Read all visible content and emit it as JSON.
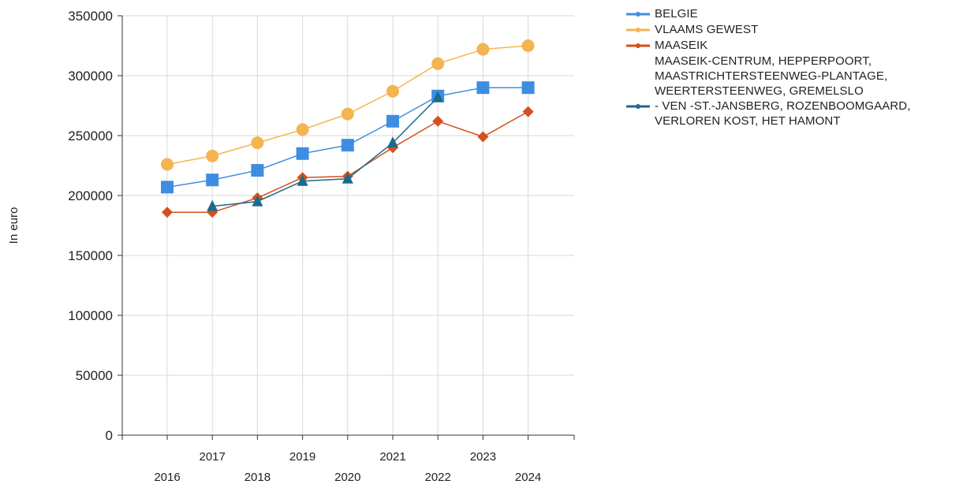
{
  "chart_data": {
    "type": "line",
    "title": "",
    "xlabel": "",
    "ylabel": "In euro",
    "x": [
      "2016",
      "2017",
      "2018",
      "2019",
      "2020",
      "2021",
      "2022",
      "2023",
      "2024"
    ],
    "ylim": [
      0,
      350000
    ],
    "yticks": [
      "0",
      "50000",
      "100000",
      "150000",
      "200000",
      "250000",
      "300000",
      "350000"
    ],
    "grid": true,
    "legend_position": "top-right",
    "series": [
      {
        "name": "BELGIE",
        "color": "#3f8de2",
        "marker": "square",
        "values": [
          207000,
          213000,
          221000,
          235000,
          242000,
          262000,
          283000,
          290000,
          290000
        ]
      },
      {
        "name": "VLAAMS GEWEST",
        "color": "#f4b450",
        "marker": "circle",
        "values": [
          226000,
          233000,
          244000,
          255000,
          268000,
          287000,
          310000,
          322000,
          325000
        ]
      },
      {
        "name": "MAASEIK",
        "color": "#d4501c",
        "marker": "diamond",
        "values": [
          186000,
          186000,
          198000,
          215000,
          216000,
          240000,
          262000,
          249000,
          270000
        ]
      },
      {
        "name": "MAASEIK-CENTRUM, HEPPERPOORT, MAASTRICHTERSTEENWEG-PLANTAGE, WEERTERSTEENWEG, GREMELSLO - VEN -ST.-JANSBERG, ROZENBOOMGAARD, VERLOREN KOST, HET HAMONT",
        "color": "#1a6b8c",
        "marker": "triangle",
        "values": [
          null,
          191000,
          195000,
          212000,
          214000,
          244000,
          282000,
          null,
          null
        ]
      }
    ]
  },
  "legend": {
    "items": [
      {
        "lines": [
          "BELGIE"
        ],
        "color": "#3f8de2"
      },
      {
        "lines": [
          "VLAAMS GEWEST"
        ],
        "color": "#f4b450"
      },
      {
        "lines": [
          "MAASEIK"
        ],
        "color": "#d4501c"
      },
      {
        "lines": [
          "MAASEIK-CENTRUM, HEPPERPOORT,",
          "MAASTRICHTERSTEENWEG-PLANTAGE,",
          "WEERTERSTEENWEG, GREMELSLO",
          "- VEN -ST.-JANSBERG, ROZENBOOMGAARD,",
          "VERLOREN KOST, HET HAMONT"
        ],
        "color": "#1a6b8c"
      }
    ]
  }
}
